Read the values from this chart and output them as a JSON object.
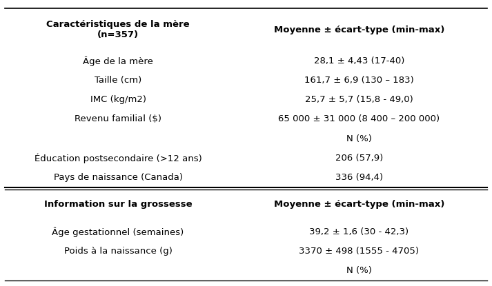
{
  "rows": [
    {
      "col1": "Caractéristiques de la mère\n(n=357)",
      "col2": "Moyenne ± écart-type (min-max)",
      "bold1": true,
      "bold2": true,
      "header": true
    },
    {
      "col1": "Âge de la mère",
      "col2": "28,1 ± 4,43 (17-40)",
      "bold1": false,
      "bold2": false
    },
    {
      "col1": "Taille (cm)",
      "col2": "161,7 ± 6,9 (130 – 183)",
      "bold1": false,
      "bold2": false
    },
    {
      "col1": "IMC (kg/m2)",
      "col2": "25,7 ± 5,7 (15,8 - 49,0)",
      "bold1": false,
      "bold2": false
    },
    {
      "col1": "Revenu familial ($)",
      "col2": "65 000 ± 31 000 (8 400 – 200 000)",
      "bold1": false,
      "bold2": false
    },
    {
      "col1": "",
      "col2": "N (%)",
      "bold1": false,
      "bold2": false
    },
    {
      "col1": "Éducation postsecondaire (>12 ans)",
      "col2": "206 (57,9)",
      "bold1": false,
      "bold2": false
    },
    {
      "col1": "Pays de naissance (Canada)",
      "col2": "336 (94,4)",
      "bold1": false,
      "bold2": false
    },
    {
      "col1": "Information sur la grossesse",
      "col2": "Moyenne ± écart-type (min-max)",
      "bold1": true,
      "bold2": true,
      "separator": true
    },
    {
      "col1": "Âge gestationnel (semaines)",
      "col2": "39,2 ± 1,6 (30 - 42,3)",
      "bold1": false,
      "bold2": false
    },
    {
      "col1": "Poids à la naissance (g)",
      "col2": "3370 ± 498 (1555 - 4705)",
      "bold1": false,
      "bold2": false
    },
    {
      "col1": "",
      "col2": "N (%)",
      "bold1": false,
      "bold2": false
    }
  ],
  "bg_color": "#ffffff",
  "text_color": "#000000",
  "line_color": "#000000",
  "font_size": 9.5,
  "col_split": 0.47
}
